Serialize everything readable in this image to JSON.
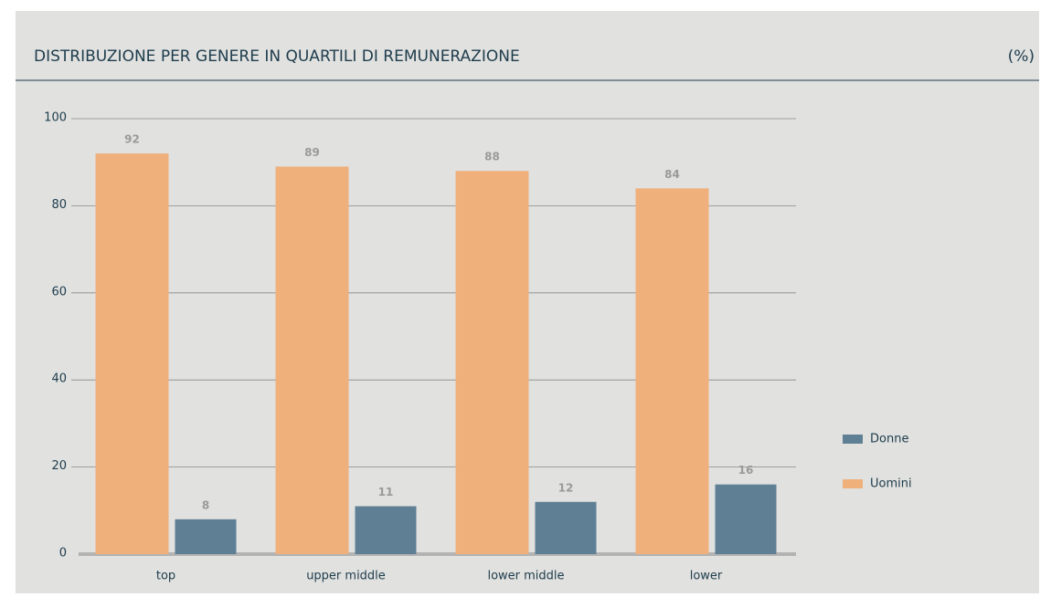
{
  "chart_data": {
    "type": "bar",
    "title": "DISTRIBUZIONE PER GENERE IN QUARTILI DI REMUNERAZIONE",
    "unit": "(%)",
    "categories": [
      "top",
      "upper middle",
      "lower middle",
      "lower"
    ],
    "series": [
      {
        "name": "Uomini",
        "color": "#efb07c",
        "values": [
          92,
          89,
          88,
          84
        ]
      },
      {
        "name": "Donne",
        "color": "#5f7f94",
        "values": [
          8,
          11,
          12,
          16
        ]
      }
    ],
    "legend_order": [
      "Donne",
      "Uomini"
    ],
    "ylim": [
      0,
      100
    ],
    "yticks": [
      0,
      20,
      40,
      60,
      80,
      100
    ],
    "grid": true
  }
}
